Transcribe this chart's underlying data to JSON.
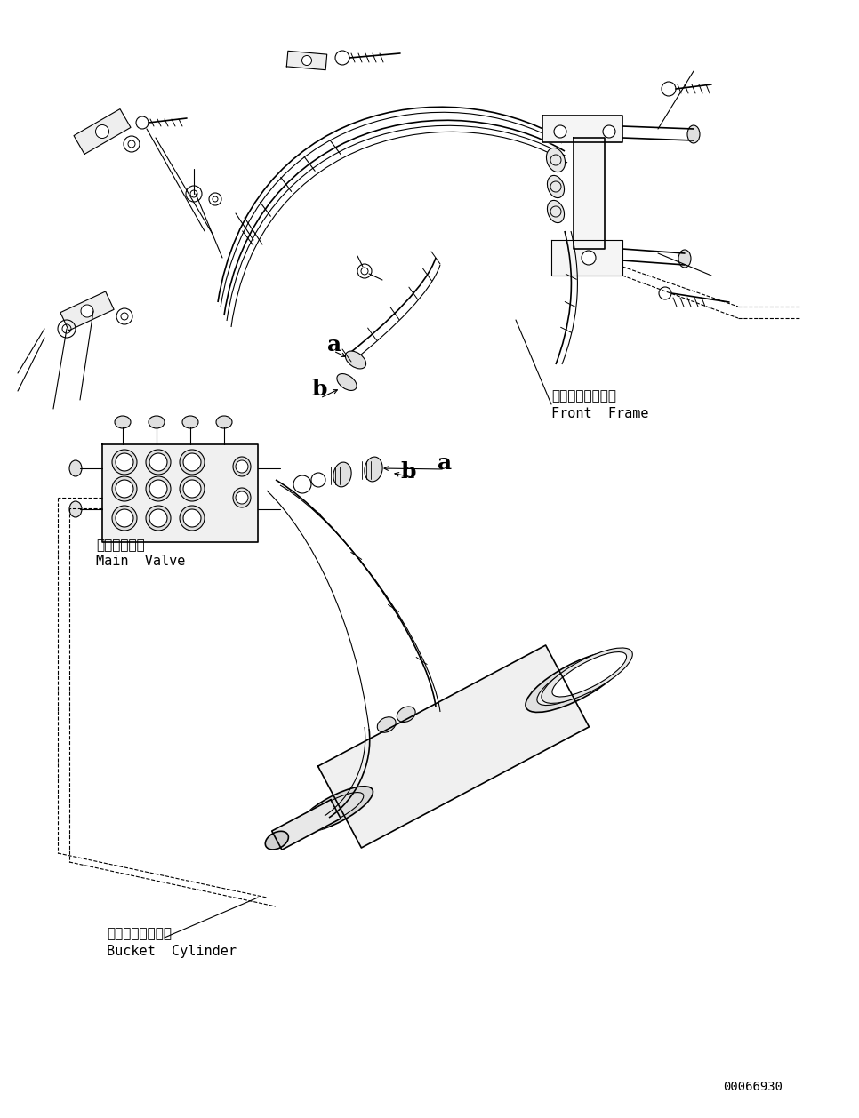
{
  "background_color": "#ffffff",
  "line_color": "#000000",
  "fig_width": 9.66,
  "fig_height": 12.58,
  "dpi": 100,
  "diagram_id": "00066930",
  "labels": {
    "front_frame_jp": "フロントフレーム",
    "front_frame_en": "Front  Frame",
    "main_valve_jp": "メインバルブ",
    "main_valve_en": "Main  Valve",
    "bucket_cylinder_jp": "バケットシリンダ",
    "bucket_cylinder_en": "Bucket  Cylinder"
  }
}
